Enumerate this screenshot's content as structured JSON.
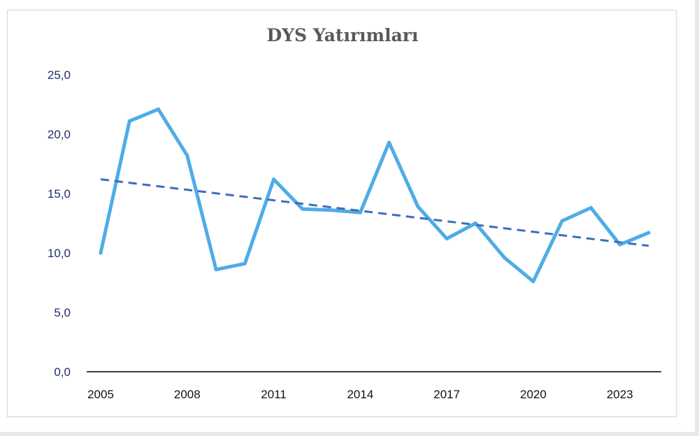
{
  "chart_data": {
    "type": "line",
    "title": "DYS Yatırımları",
    "xlabel": "",
    "ylabel": "",
    "x": [
      2005,
      2006,
      2007,
      2008,
      2009,
      2010,
      2011,
      2012,
      2013,
      2014,
      2015,
      2016,
      2017,
      2018,
      2019,
      2020,
      2021,
      2022,
      2023,
      2024
    ],
    "series": [
      {
        "values": [
          10.0,
          21.1,
          22.1,
          18.2,
          8.6,
          9.1,
          16.2,
          13.7,
          13.6,
          13.4,
          19.3,
          13.9,
          11.2,
          12.5,
          9.6,
          7.6,
          12.7,
          13.8,
          10.7,
          11.7
        ]
      }
    ],
    "trendline": {
      "type": "linear",
      "start": {
        "x": 2005,
        "y": 16.2
      },
      "end": {
        "x": 2024,
        "y": 10.6
      }
    },
    "ylim": [
      0,
      25
    ],
    "yticks": [
      "0,0",
      "5,0",
      "10,0",
      "15,0",
      "20,0",
      "25,0"
    ],
    "ytick_values": [
      0,
      5,
      10,
      15,
      20,
      25
    ],
    "xticks": [
      "2005",
      "2008",
      "2011",
      "2014",
      "2017",
      "2020",
      "2023"
    ],
    "xtick_values": [
      2005,
      2008,
      2011,
      2014,
      2017,
      2020,
      2023
    ],
    "grid": false,
    "legend": "none",
    "colors": {
      "series": "#4eace6",
      "trendline": "#3a6fbf",
      "axis": "#000000",
      "ytick": "#1f2f6b",
      "xtick": "#111111",
      "title": "#595959"
    }
  }
}
